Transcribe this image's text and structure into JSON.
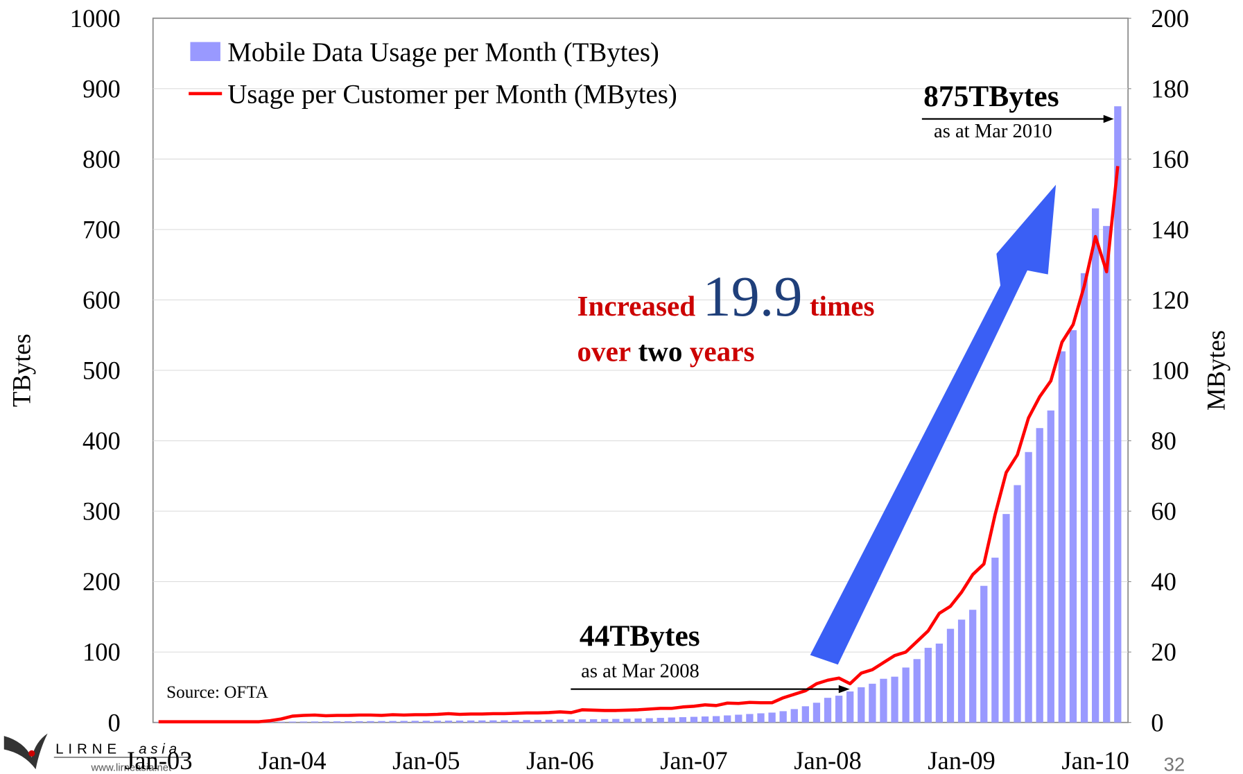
{
  "chart_data": {
    "type": "bar_line",
    "categories": [
      "Jan-03",
      null,
      null,
      null,
      null,
      null,
      null,
      null,
      null,
      null,
      null,
      null,
      "Jan-04",
      null,
      null,
      null,
      null,
      null,
      null,
      null,
      null,
      null,
      null,
      null,
      "Jan-05",
      null,
      null,
      null,
      null,
      null,
      null,
      null,
      null,
      null,
      null,
      null,
      "Jan-06",
      null,
      null,
      null,
      null,
      null,
      null,
      null,
      null,
      null,
      null,
      null,
      "Jan-07",
      null,
      null,
      null,
      null,
      null,
      null,
      null,
      null,
      null,
      null,
      null,
      "Jan-08",
      null,
      null,
      null,
      null,
      null,
      null,
      null,
      null,
      null,
      null,
      null,
      "Jan-09",
      null,
      null,
      null,
      null,
      null,
      null,
      null,
      null,
      null,
      null,
      null,
      "Jan-10",
      null,
      null
    ],
    "series": [
      {
        "name": "Mobile Data Usage per Month (TBytes)",
        "type": "bar",
        "color": "#9999ff",
        "values": [
          0.3,
          0.3,
          0.4,
          0.4,
          0.5,
          0.5,
          0.6,
          0.6,
          0.7,
          0.8,
          0.9,
          1.0,
          1.2,
          1.3,
          1.4,
          1.5,
          1.6,
          1.7,
          1.8,
          1.9,
          2.0,
          2.1,
          2.2,
          2.3,
          2.4,
          2.5,
          2.6,
          2.7,
          2.8,
          2.9,
          3.0,
          3.1,
          3.2,
          3.4,
          3.6,
          3.8,
          4,
          4.2,
          4.4,
          4.6,
          4.8,
          5,
          5.3,
          5.6,
          6,
          6.5,
          7,
          7.5,
          8,
          8.5,
          9,
          10,
          11,
          12,
          13,
          14,
          16,
          19,
          23,
          28,
          35,
          38,
          44,
          50,
          55,
          62,
          65,
          78,
          90,
          106,
          112,
          133,
          146,
          160,
          194,
          234,
          296,
          337,
          384,
          418,
          443,
          527,
          557,
          638,
          730,
          705,
          875
        ]
      },
      {
        "name": "Usage per Customer per Month (MBytes)",
        "type": "line",
        "axis": "y2",
        "color": "#ff0000",
        "values": [
          0.2,
          0.2,
          0.2,
          0.2,
          0.2,
          0.2,
          0.2,
          0.2,
          0.2,
          0.2,
          0.5,
          1.0,
          1.8,
          2.0,
          2.1,
          1.9,
          2.0,
          2.0,
          2.1,
          2.1,
          2.0,
          2.2,
          2.1,
          2.2,
          2.2,
          2.3,
          2.5,
          2.3,
          2.4,
          2.4,
          2.5,
          2.5,
          2.6,
          2.7,
          2.7,
          2.8,
          3.0,
          2.8,
          3.6,
          3.5,
          3.4,
          3.4,
          3.5,
          3.6,
          3.8,
          4.0,
          4.0,
          4.4,
          4.6,
          5.0,
          4.8,
          5.5,
          5.4,
          5.7,
          5.6,
          5.6,
          7,
          8,
          9,
          11,
          12,
          12.6,
          11,
          14,
          15,
          17,
          19,
          20,
          23,
          26,
          31,
          33,
          37,
          42,
          45,
          59,
          71,
          76,
          86.5,
          92.5,
          97,
          108,
          113,
          124,
          138,
          128,
          158
        ]
      }
    ],
    "ylabel": "TBytes",
    "y2label": "MBytes",
    "ylim": [
      0,
      1000
    ],
    "yticks": [
      0,
      100,
      200,
      300,
      400,
      500,
      600,
      700,
      800,
      900,
      1000
    ],
    "y2lim": [
      0,
      200
    ],
    "y2ticks": [
      0,
      20,
      40,
      60,
      80,
      100,
      120,
      140,
      160,
      180,
      200
    ],
    "grid": true,
    "legend": "upper left",
    "annotations": {
      "peak": "875TBytes",
      "peak_note": "as at Mar 2010",
      "mid": "44TBytes",
      "mid_note": "as at Mar 2008",
      "growth": [
        "Increased",
        "19.9",
        "times"
      ],
      "growth2": [
        "over",
        "two",
        "years"
      ],
      "source": "Source: OFTA"
    }
  },
  "page_number": "32",
  "logo": {
    "name1": "LIRNE",
    "name2": "asia",
    "url": "www.lirneasia.net"
  }
}
